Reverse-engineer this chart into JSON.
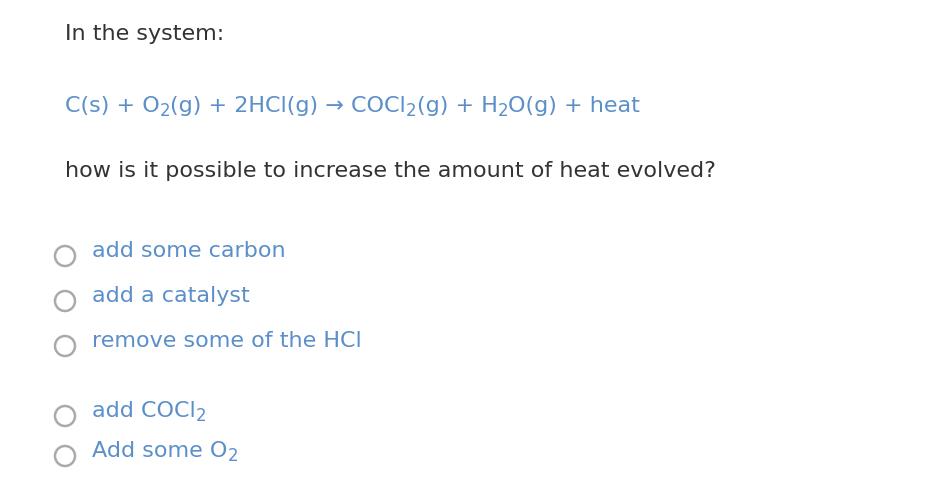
{
  "background_color": "#ffffff",
  "text_color": "#5b8fc9",
  "dark_color": "#333333",
  "font_size": 16,
  "font_size_sub": 12,
  "header": "In the system:",
  "question": "how is it possible to increase the amount of heat evolved?",
  "options": [
    {
      "label": "add some carbon",
      "has_sub": false
    },
    {
      "label": "add a catalyst",
      "has_sub": false
    },
    {
      "label": "remove some of the HCl",
      "has_sub": false
    },
    {
      "label_base": "add COCl",
      "sub": "2",
      "label_after": "",
      "has_sub": true
    },
    {
      "label_base": "Add some O",
      "sub": "2",
      "label_after": "",
      "has_sub": true
    }
  ],
  "radio_color": "#aaaaaa",
  "radio_linewidth": 1.8
}
